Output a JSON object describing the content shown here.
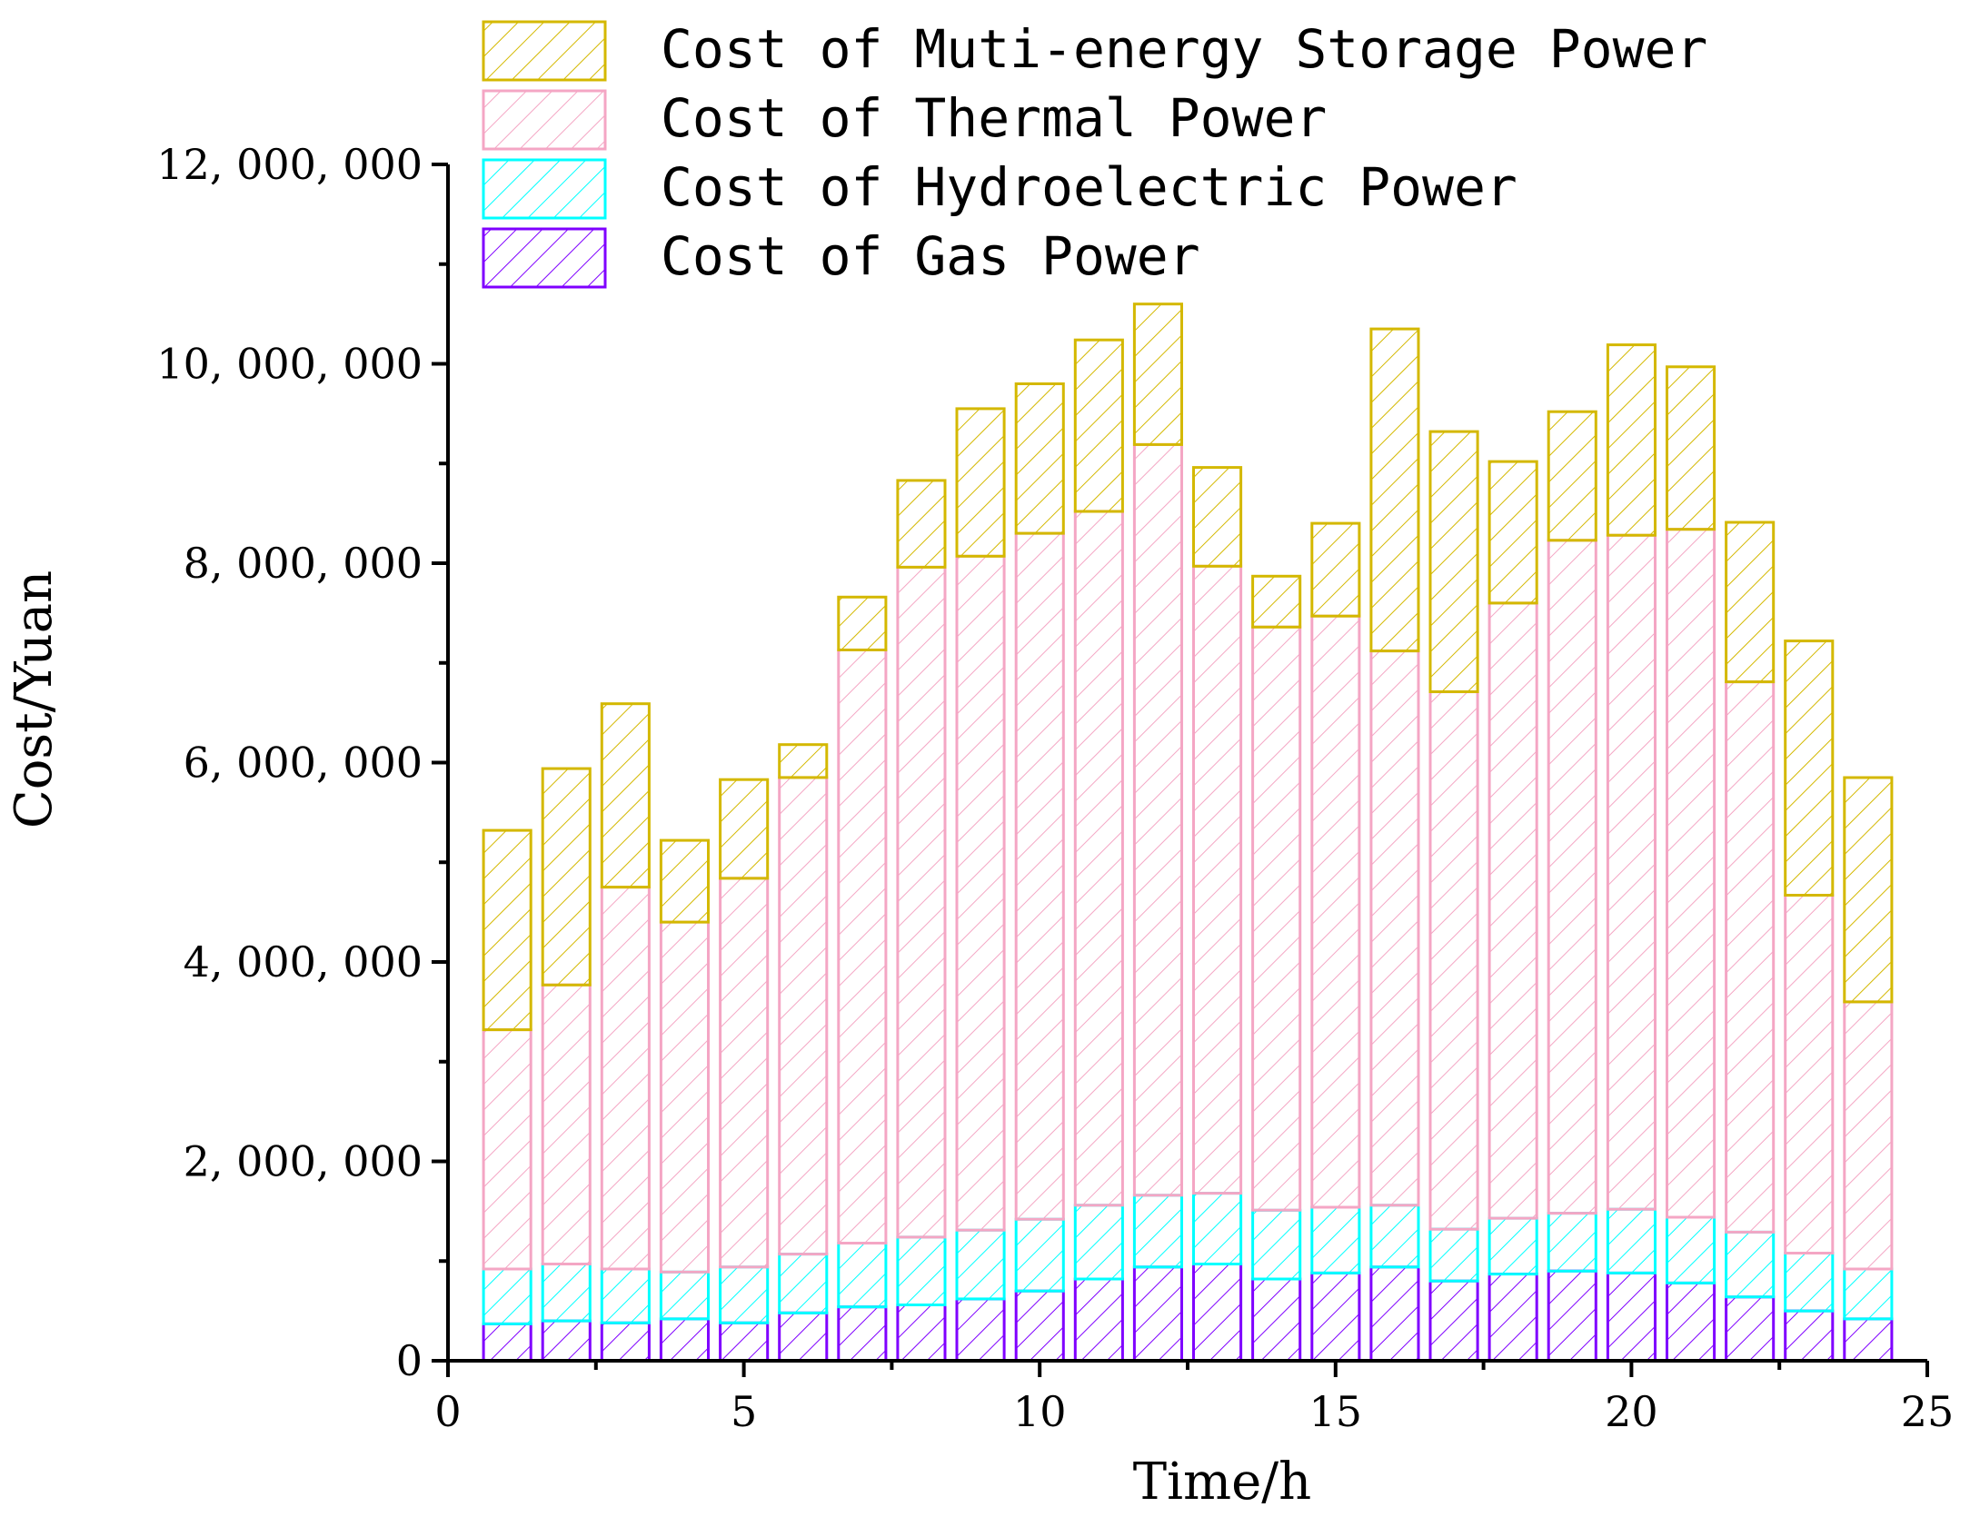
{
  "chart_data": {
    "type": "bar",
    "stacked": true,
    "xlabel": "Time/h",
    "ylabel": "Cost/Yuan",
    "xlim": [
      0,
      25
    ],
    "ylim": [
      0,
      12000000
    ],
    "xticks": [
      0,
      5,
      10,
      15,
      20,
      25
    ],
    "xtick_labels": [
      "0",
      "5",
      "10",
      "15",
      "20",
      "25"
    ],
    "yticks": [
      0,
      2000000,
      4000000,
      6000000,
      8000000,
      10000000,
      12000000
    ],
    "ytick_labels": [
      "0",
      "2, 000, 000",
      "4, 000, 000",
      "6, 000, 000",
      "8, 000, 000",
      "10, 000, 000",
      "12, 000, 000"
    ],
    "legend_position": "top-left",
    "x": [
      1,
      2,
      3,
      4,
      5,
      6,
      7,
      8,
      9,
      10,
      11,
      12,
      13,
      14,
      15,
      16,
      17,
      18,
      19,
      20,
      21,
      22,
      23,
      24
    ],
    "series": [
      {
        "name": "Cost of Gas Power",
        "color": "#7f00ff",
        "values": [
          370000,
          400000,
          380000,
          420000,
          380000,
          480000,
          540000,
          560000,
          620000,
          700000,
          820000,
          940000,
          970000,
          820000,
          880000,
          940000,
          800000,
          870000,
          900000,
          880000,
          780000,
          640000,
          500000,
          420000
        ]
      },
      {
        "name": "Cost of Hydroelectric Power",
        "color": "#00ffff",
        "values": [
          550000,
          570000,
          540000,
          470000,
          560000,
          590000,
          640000,
          680000,
          690000,
          720000,
          740000,
          720000,
          710000,
          690000,
          660000,
          620000,
          520000,
          560000,
          580000,
          640000,
          660000,
          650000,
          580000,
          500000
        ]
      },
      {
        "name": "Cost of Thermal Power",
        "color": "#f4a6c4",
        "values": [
          2400000,
          2800000,
          3830000,
          3510000,
          3900000,
          4780000,
          5950000,
          6720000,
          6760000,
          6880000,
          6960000,
          7530000,
          6290000,
          5850000,
          5930000,
          5560000,
          5390000,
          6170000,
          6750000,
          6760000,
          6900000,
          5520000,
          3590000,
          2680000
        ]
      },
      {
        "name": "Cost of Muti-energy Storage Power",
        "color": "#d4b800",
        "values": [
          2000000,
          2170000,
          1840000,
          820000,
          990000,
          330000,
          530000,
          870000,
          1480000,
          1500000,
          1720000,
          1410000,
          990000,
          510000,
          930000,
          3230000,
          2610000,
          1420000,
          1290000,
          1910000,
          1630000,
          1600000,
          2550000,
          2250000
        ]
      }
    ],
    "legend": [
      {
        "label": "Cost of Muti-energy Storage Power",
        "series": 3
      },
      {
        "label": "Cost of Thermal Power",
        "series": 2
      },
      {
        "label": "Cost of Hydroelectric Power",
        "series": 1
      },
      {
        "label": "Cost of Gas Power",
        "series": 0
      }
    ]
  }
}
